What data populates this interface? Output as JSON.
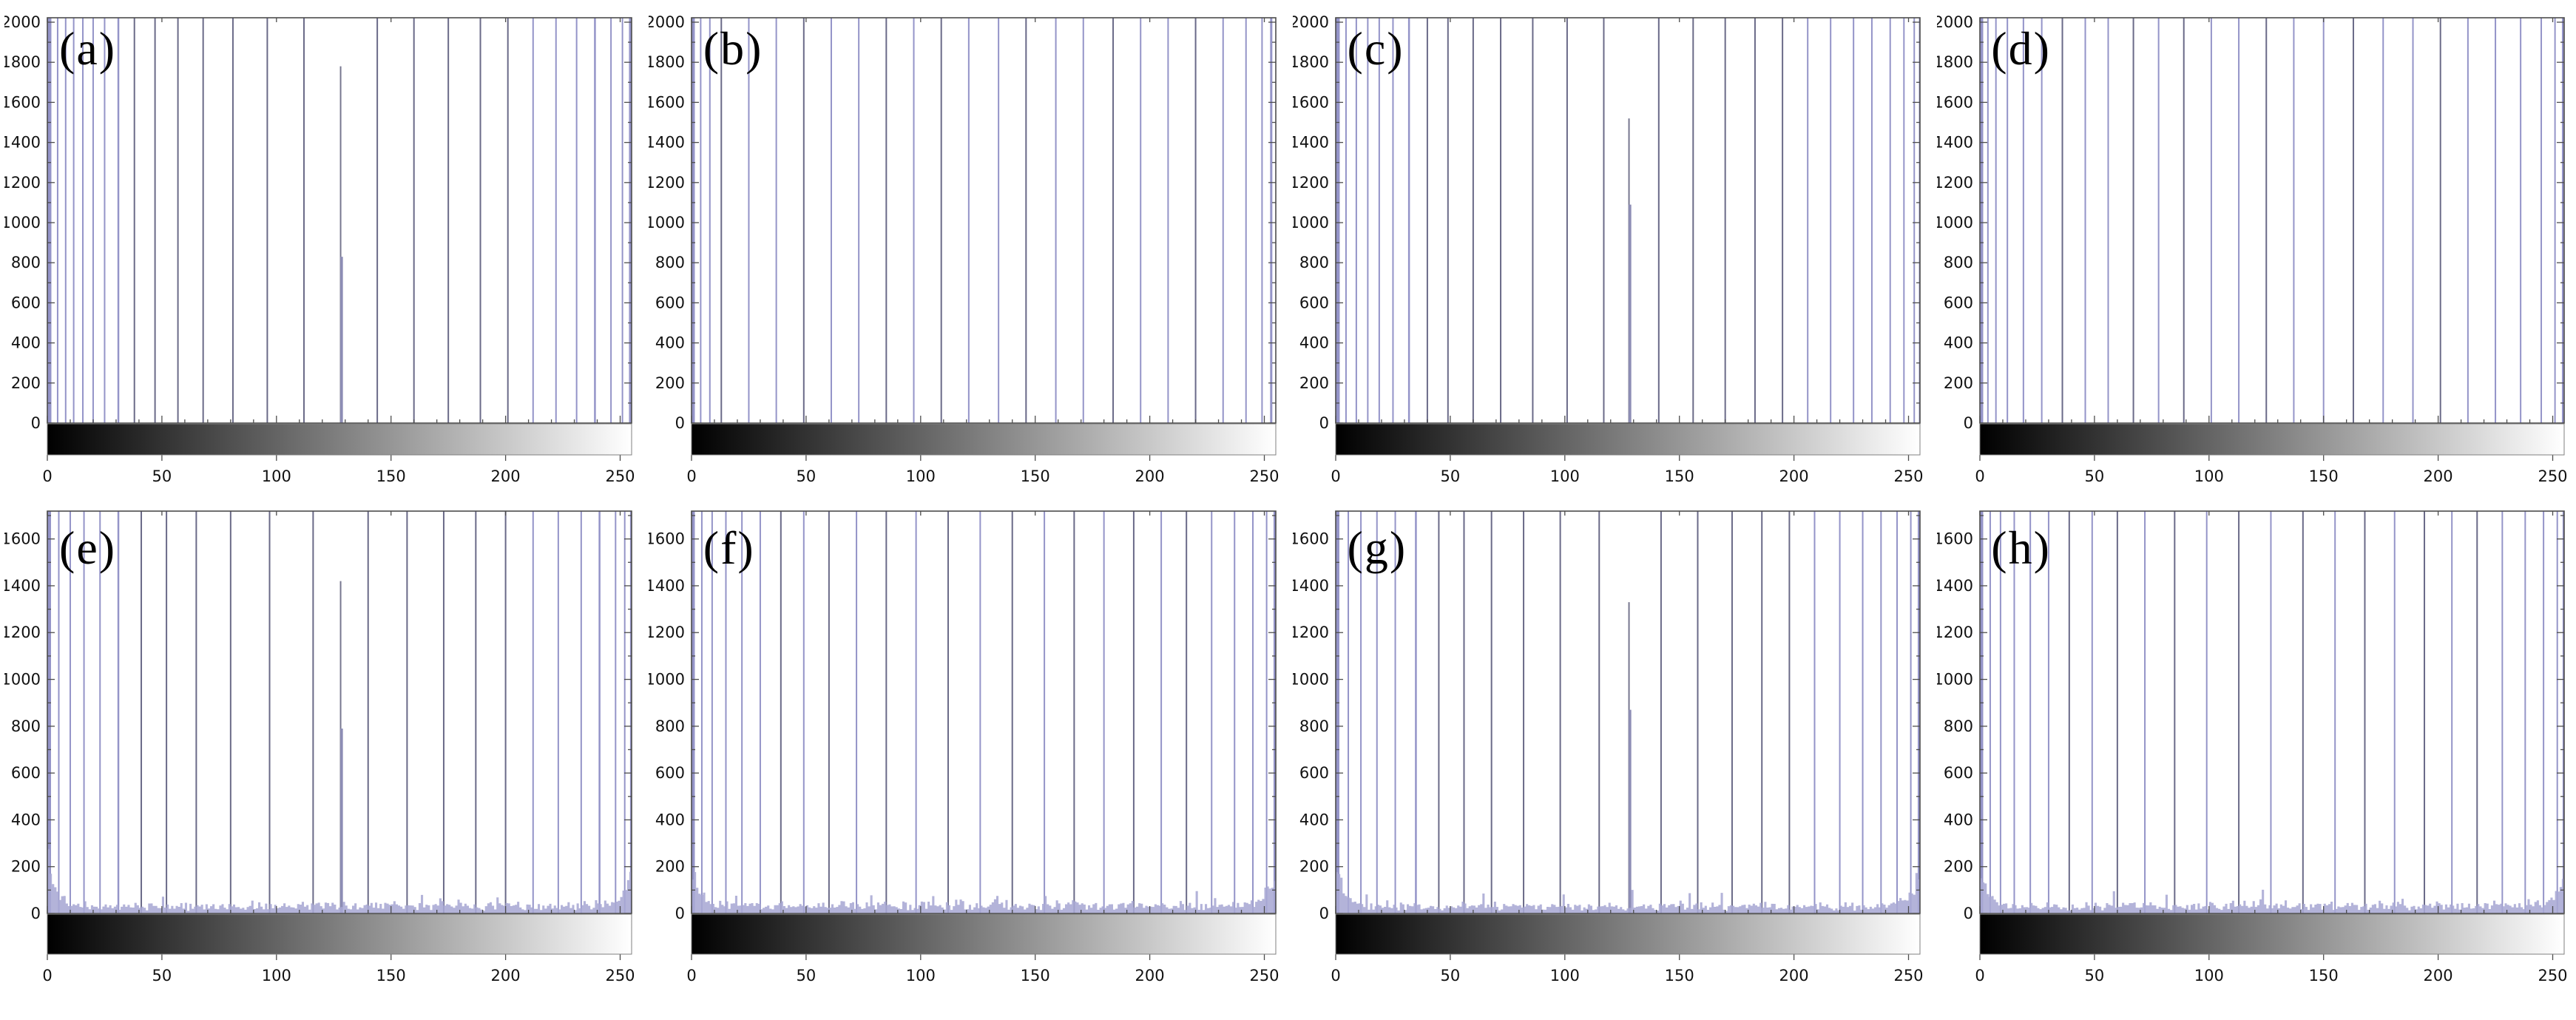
{
  "figure": {
    "background": "#ffffff",
    "rows": 2,
    "cols": 4,
    "panel_labels": [
      "(a)",
      "(b)",
      "(c)",
      "(d)",
      "(e)",
      "(f)",
      "(g)",
      "(h)"
    ]
  },
  "style": {
    "spike_color": "#9494c8",
    "spike_color_dark": "#6a6a88",
    "mid_spike_thin_color": "#77778f",
    "mid_spike_thick_color": "#8d8db5",
    "noise_fill": "#a9a9d4",
    "axis_line_color": "#4d4d4d",
    "tick_label_color": "#111111",
    "colorbar_border_color": "#808080",
    "colorbar_gradient": [
      "#000000",
      "#ffffff"
    ]
  },
  "encoding_note": "spikes = [gray_level_x, line_width_px, tone(0=lavender,1=slate)]; all spikes are clipped at the top of the y-axis; mid_spike heights are readable values",
  "chart_data": [
    {
      "id": "a",
      "label": "(a)",
      "type": "bar",
      "row": "top",
      "xlim": [
        0,
        255
      ],
      "ylim": [
        0,
        2000
      ],
      "xticks": [
        0,
        50,
        100,
        150,
        200,
        250
      ],
      "yticks": [
        0,
        200,
        400,
        600,
        800,
        1000,
        1200,
        1400,
        1600,
        1800,
        2000
      ],
      "spikes": [
        [
          0.8,
          6,
          0
        ],
        [
          4.5,
          2,
          0
        ],
        [
          8,
          2,
          0
        ],
        [
          11.5,
          2,
          0
        ],
        [
          15.5,
          2,
          0
        ],
        [
          20,
          2,
          0
        ],
        [
          25,
          2,
          0
        ],
        [
          31,
          2.5,
          0
        ],
        [
          38,
          2,
          1
        ],
        [
          47,
          2,
          1
        ],
        [
          57,
          2,
          1
        ],
        [
          68,
          2,
          1
        ],
        [
          81,
          2,
          1
        ],
        [
          96,
          2,
          1
        ],
        [
          112,
          2,
          1
        ],
        [
          144,
          2,
          1
        ],
        [
          160,
          2,
          1
        ],
        [
          175,
          2,
          1
        ],
        [
          189,
          2,
          1
        ],
        [
          201,
          2,
          1
        ],
        [
          212,
          2,
          0
        ],
        [
          222,
          2,
          0
        ],
        [
          231,
          2,
          0
        ],
        [
          239,
          2.5,
          0
        ],
        [
          246,
          2,
          0
        ],
        [
          251,
          2,
          0
        ],
        [
          254.5,
          4,
          0
        ]
      ],
      "mid_spike": {
        "x": 128,
        "h_thin": 1780,
        "h_thick": 830
      },
      "noise": null
    },
    {
      "id": "b",
      "label": "(b)",
      "type": "bar",
      "row": "top",
      "xlim": [
        0,
        255
      ],
      "ylim": [
        0,
        2000
      ],
      "xticks": [
        0,
        50,
        100,
        150,
        200,
        250
      ],
      "yticks": [
        0,
        200,
        400,
        600,
        800,
        1000,
        1200,
        1400,
        1600,
        1800,
        2000
      ],
      "spikes": [
        [
          0.8,
          4,
          0
        ],
        [
          4,
          2,
          0
        ],
        [
          8,
          2,
          0
        ],
        [
          13,
          2,
          1
        ],
        [
          25,
          2,
          0
        ],
        [
          37,
          2,
          0
        ],
        [
          49,
          2,
          1
        ],
        [
          61,
          2,
          0
        ],
        [
          73,
          2,
          0
        ],
        [
          85,
          2,
          1
        ],
        [
          97,
          2,
          0
        ],
        [
          109,
          2,
          1
        ],
        [
          121,
          2,
          0
        ],
        [
          134,
          2,
          0
        ],
        [
          146,
          2,
          1
        ],
        [
          159,
          2,
          0
        ],
        [
          171,
          2,
          0
        ],
        [
          184,
          2,
          1
        ],
        [
          196,
          2,
          0
        ],
        [
          208,
          2,
          0
        ],
        [
          220,
          2,
          1
        ],
        [
          232,
          2,
          0
        ],
        [
          242,
          2,
          0
        ],
        [
          249,
          2,
          0
        ],
        [
          253,
          3,
          0
        ]
      ],
      "mid_spike": null,
      "noise": null
    },
    {
      "id": "c",
      "label": "(c)",
      "type": "bar",
      "row": "top",
      "xlim": [
        0,
        255
      ],
      "ylim": [
        0,
        2000
      ],
      "xticks": [
        0,
        50,
        100,
        150,
        200,
        250
      ],
      "yticks": [
        0,
        200,
        400,
        600,
        800,
        1000,
        1200,
        1400,
        1600,
        1800,
        2000
      ],
      "spikes": [
        [
          0.8,
          6,
          0
        ],
        [
          4.5,
          2,
          0
        ],
        [
          9,
          2,
          0
        ],
        [
          14,
          2,
          0
        ],
        [
          19,
          2,
          0
        ],
        [
          25,
          2,
          0
        ],
        [
          32,
          2.5,
          0
        ],
        [
          40,
          2,
          1
        ],
        [
          49,
          2,
          1
        ],
        [
          60,
          2,
          1
        ],
        [
          72,
          2,
          1
        ],
        [
          86,
          2,
          1
        ],
        [
          101,
          2,
          1
        ],
        [
          117,
          2,
          1
        ],
        [
          141,
          2,
          1
        ],
        [
          156,
          2,
          1
        ],
        [
          170,
          2,
          1
        ],
        [
          183,
          2,
          1
        ],
        [
          195,
          2,
          1
        ],
        [
          206,
          2,
          0
        ],
        [
          216,
          2,
          0
        ],
        [
          226,
          2,
          0
        ],
        [
          234,
          2,
          0
        ],
        [
          242,
          2,
          0
        ],
        [
          248,
          2,
          0
        ],
        [
          252.5,
          2,
          0
        ],
        [
          255,
          3,
          0
        ]
      ],
      "mid_spike": {
        "x": 128,
        "h_thin": 1520,
        "h_thick": 1090
      },
      "noise": null
    },
    {
      "id": "d",
      "label": "(d)",
      "type": "bar",
      "row": "top",
      "xlim": [
        0,
        255
      ],
      "ylim": [
        0,
        2000
      ],
      "xticks": [
        0,
        50,
        100,
        150,
        200,
        250
      ],
      "yticks": [
        0,
        200,
        400,
        600,
        800,
        1000,
        1200,
        1400,
        1600,
        1800,
        2000
      ],
      "spikes": [
        [
          0.8,
          4,
          0
        ],
        [
          3.5,
          2,
          0
        ],
        [
          7,
          2,
          0
        ],
        [
          12,
          2,
          0
        ],
        [
          19,
          2,
          0
        ],
        [
          27,
          2,
          0
        ],
        [
          36,
          2,
          1
        ],
        [
          46,
          2,
          0
        ],
        [
          56,
          2,
          0
        ],
        [
          67,
          2,
          1
        ],
        [
          78,
          2,
          0
        ],
        [
          89,
          2,
          1
        ],
        [
          101,
          2,
          0
        ],
        [
          113,
          2,
          0
        ],
        [
          125,
          2,
          1
        ],
        [
          137,
          2,
          0
        ],
        [
          150,
          2,
          0
        ],
        [
          163,
          2,
          1
        ],
        [
          176,
          2,
          0
        ],
        [
          189,
          2,
          0
        ],
        [
          201,
          2,
          1
        ],
        [
          213,
          2,
          0
        ],
        [
          225,
          2,
          0
        ],
        [
          236,
          2,
          0
        ],
        [
          245,
          2,
          0
        ],
        [
          251,
          2,
          0
        ],
        [
          254.5,
          3,
          0
        ]
      ],
      "mid_spike": null,
      "noise": null
    },
    {
      "id": "e",
      "label": "(e)",
      "type": "bar",
      "row": "bottom",
      "xlim": [
        0,
        255
      ],
      "ylim": [
        0,
        1700
      ],
      "xticks": [
        0,
        50,
        100,
        150,
        200,
        250
      ],
      "yticks": [
        0,
        200,
        400,
        600,
        800,
        1000,
        1200,
        1400,
        1600
      ],
      "spikes": [
        [
          0.8,
          5,
          0
        ],
        [
          5,
          2,
          0
        ],
        [
          10,
          2,
          0
        ],
        [
          16,
          2,
          0
        ],
        [
          23,
          2,
          0
        ],
        [
          31,
          2.5,
          0
        ],
        [
          41,
          2,
          1
        ],
        [
          52,
          2,
          1
        ],
        [
          65,
          2,
          1
        ],
        [
          80,
          2,
          1
        ],
        [
          97,
          2,
          1
        ],
        [
          116,
          2,
          1
        ],
        [
          140,
          2,
          1
        ],
        [
          157,
          2,
          1
        ],
        [
          173,
          2,
          1
        ],
        [
          187,
          2,
          1
        ],
        [
          200,
          2,
          1
        ],
        [
          212,
          2,
          0
        ],
        [
          223,
          2,
          0
        ],
        [
          233,
          2,
          0
        ],
        [
          241,
          2.5,
          0
        ],
        [
          248,
          2,
          0
        ],
        [
          252,
          2,
          0
        ],
        [
          254.8,
          3,
          0
        ]
      ],
      "mid_spike": {
        "x": 128,
        "h_thin": 1420,
        "h_thick": 790
      },
      "noise": {
        "base": 28,
        "jitter": 26,
        "edge_left": 215,
        "edge_right": 165,
        "seed": 11
      }
    },
    {
      "id": "f",
      "label": "(f)",
      "type": "bar",
      "row": "bottom",
      "xlim": [
        0,
        255
      ],
      "ylim": [
        0,
        1700
      ],
      "xticks": [
        0,
        50,
        100,
        150,
        200,
        250
      ],
      "yticks": [
        0,
        200,
        400,
        600,
        800,
        1000,
        1200,
        1400,
        1600
      ],
      "spikes": [
        [
          0.8,
          4,
          0
        ],
        [
          4.5,
          2,
          0
        ],
        [
          9,
          2,
          0
        ],
        [
          15,
          2,
          0
        ],
        [
          22,
          2,
          0
        ],
        [
          30,
          2,
          0
        ],
        [
          39,
          2,
          1
        ],
        [
          49,
          2,
          0
        ],
        [
          60,
          2,
          1
        ],
        [
          72,
          2,
          0
        ],
        [
          85,
          2,
          1
        ],
        [
          98,
          2,
          0
        ],
        [
          112,
          2,
          1
        ],
        [
          126,
          2,
          0
        ],
        [
          140,
          2,
          1
        ],
        [
          154,
          2,
          0
        ],
        [
          167,
          2,
          1
        ],
        [
          180,
          2,
          0
        ],
        [
          193,
          2,
          1
        ],
        [
          205,
          2,
          0
        ],
        [
          216,
          2,
          1
        ],
        [
          227,
          2,
          0
        ],
        [
          237,
          2,
          0
        ],
        [
          245,
          2,
          0
        ],
        [
          251,
          2,
          0
        ],
        [
          254.5,
          3,
          0
        ]
      ],
      "mid_spike": null,
      "noise": {
        "base": 30,
        "jitter": 24,
        "edge_left": 150,
        "edge_right": 150,
        "seed": 23
      }
    },
    {
      "id": "g",
      "label": "(g)",
      "type": "bar",
      "row": "bottom",
      "xlim": [
        0,
        255
      ],
      "ylim": [
        0,
        1700
      ],
      "xticks": [
        0,
        50,
        100,
        150,
        200,
        250
      ],
      "yticks": [
        0,
        200,
        400,
        600,
        800,
        1000,
        1200,
        1400,
        1600
      ],
      "spikes": [
        [
          0.8,
          5,
          0
        ],
        [
          5.5,
          2,
          0
        ],
        [
          11,
          2,
          0
        ],
        [
          18,
          2,
          0
        ],
        [
          26,
          2,
          0
        ],
        [
          35,
          2.5,
          0
        ],
        [
          45,
          2,
          1
        ],
        [
          56,
          2,
          1
        ],
        [
          68,
          2,
          1
        ],
        [
          82,
          2,
          1
        ],
        [
          98,
          2,
          1
        ],
        [
          115,
          2,
          1
        ],
        [
          142,
          2,
          1
        ],
        [
          158,
          2,
          1
        ],
        [
          173,
          2,
          1
        ],
        [
          186,
          2,
          1
        ],
        [
          198,
          2,
          1
        ],
        [
          209,
          2,
          0
        ],
        [
          220,
          2,
          0
        ],
        [
          230,
          2,
          0
        ],
        [
          238,
          2,
          0
        ],
        [
          245,
          2,
          0
        ],
        [
          251,
          2,
          0
        ],
        [
          254.5,
          3,
          0
        ]
      ],
      "mid_spike": {
        "x": 128,
        "h_thin": 1330,
        "h_thick": 870
      },
      "noise": {
        "base": 26,
        "jitter": 24,
        "edge_left": 190,
        "edge_right": 185,
        "seed": 37
      }
    },
    {
      "id": "h",
      "label": "(h)",
      "type": "bar",
      "row": "bottom",
      "xlim": [
        0,
        255
      ],
      "ylim": [
        0,
        1700
      ],
      "xticks": [
        0,
        50,
        100,
        150,
        200,
        250
      ],
      "yticks": [
        0,
        200,
        400,
        600,
        800,
        1000,
        1200,
        1400,
        1600
      ],
      "spikes": [
        [
          0.8,
          4,
          0
        ],
        [
          4.5,
          2,
          0
        ],
        [
          9,
          2,
          0
        ],
        [
          15,
          2,
          0
        ],
        [
          22,
          2,
          0
        ],
        [
          30,
          2,
          0
        ],
        [
          39,
          2,
          1
        ],
        [
          49,
          2,
          0
        ],
        [
          60,
          2,
          1
        ],
        [
          72,
          2,
          0
        ],
        [
          85,
          2,
          1
        ],
        [
          99,
          2,
          0
        ],
        [
          113,
          2,
          1
        ],
        [
          127,
          2,
          0
        ],
        [
          141,
          2,
          1
        ],
        [
          155,
          2,
          0
        ],
        [
          168,
          2,
          1
        ],
        [
          181,
          2,
          0
        ],
        [
          194,
          2,
          1
        ],
        [
          206,
          2,
          0
        ],
        [
          217,
          2,
          1
        ],
        [
          228,
          2,
          0
        ],
        [
          238,
          2,
          0
        ],
        [
          246,
          2,
          0
        ],
        [
          252,
          2,
          0
        ],
        [
          254.8,
          3,
          0
        ]
      ],
      "mid_spike": null,
      "noise": {
        "base": 30,
        "jitter": 22,
        "edge_left": 160,
        "edge_right": 140,
        "seed": 51
      }
    }
  ]
}
